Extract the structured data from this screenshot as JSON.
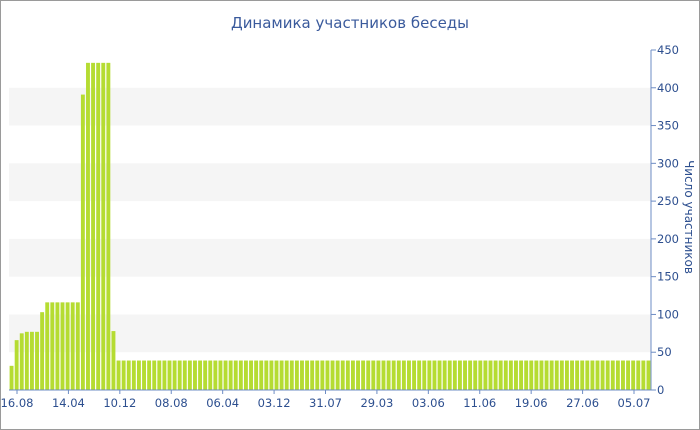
{
  "chart_data": {
    "type": "bar",
    "title": "Динамика участников беседы",
    "xlabel": "",
    "ylabel": "Число участников",
    "ylim": [
      0,
      450
    ],
    "yticks": [
      0,
      50,
      100,
      150,
      200,
      250,
      300,
      350,
      400,
      450
    ],
    "y_axis_side": "right",
    "grid": "horizontal alternating bands",
    "x_tick_labels": [
      "16.08",
      "14.04",
      "10.12",
      "08.08",
      "06.04",
      "03.12",
      "31.07",
      "29.03",
      "03.06",
      "11.06",
      "19.06",
      "27.06",
      "05.07"
    ],
    "values": [
      32,
      66,
      75,
      77,
      77,
      77,
      103,
      116,
      116,
      116,
      116,
      116,
      116,
      116,
      391,
      433,
      433,
      433,
      433,
      433,
      78,
      39,
      39,
      39,
      39,
      39,
      39,
      39,
      39,
      39,
      39,
      39,
      39,
      39,
      39,
      39,
      39,
      39,
      39,
      39,
      39,
      39,
      39,
      39,
      39,
      39,
      39,
      39,
      39,
      39,
      39,
      39,
      39,
      39,
      39,
      39,
      39,
      39,
      39,
      39,
      39,
      39,
      39,
      39,
      39,
      39,
      39,
      39,
      39,
      39,
      39,
      39,
      39,
      39,
      39,
      39,
      39,
      39,
      39,
      39,
      39,
      39,
      39,
      39,
      39,
      39,
      39,
      39,
      39,
      39,
      39,
      39,
      39,
      39,
      39,
      39,
      39,
      39,
      39,
      39,
      39,
      39,
      39,
      39,
      39,
      39,
      39,
      39,
      39,
      39,
      39,
      39,
      39,
      39,
      39,
      39,
      39,
      39,
      39,
      39,
      39,
      39,
      39,
      39,
      39,
      39
    ],
    "bar_color": "#b5dc32",
    "axis_color": "#6d8cc4",
    "text_color": "#2d4f8f",
    "band_color": "#f5f5f5"
  }
}
